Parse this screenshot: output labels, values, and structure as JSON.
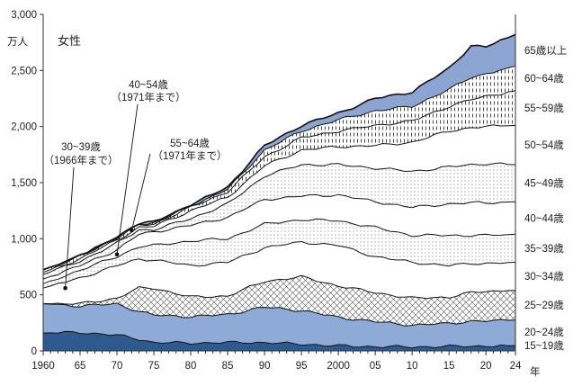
{
  "chart_data": {
    "type": "area",
    "title": "女性",
    "ylabel": "万人",
    "ylim": [
      0,
      3000
    ],
    "y_ticks": [
      "0",
      "500",
      "1,000",
      "1,500",
      "2,000",
      "2,500",
      "3,000"
    ],
    "y_tick_values": [
      0,
      500,
      1000,
      1500,
      2000,
      2500,
      3000
    ],
    "x_tick_labels": [
      "1960",
      "65",
      "70",
      "75",
      "80",
      "85",
      "90",
      "95",
      "2000",
      "05",
      "10",
      "15",
      "20",
      "24"
    ],
    "x_tick_values": [
      1960,
      1965,
      1970,
      1975,
      1980,
      1985,
      1990,
      1995,
      2000,
      2005,
      2010,
      2015,
      2020,
      2024
    ],
    "x_unit": "年",
    "x_anchor_years": [
      1960,
      1965,
      1970,
      1973,
      1975,
      1980,
      1985,
      1990,
      1995,
      2000,
      2005,
      2010,
      2015,
      2018,
      2020,
      2024
    ],
    "boundaries": [
      {
        "name": "15~19",
        "values": [
          160,
          165,
          140,
          105,
          75,
          70,
          75,
          75,
          60,
          45,
          38,
          35,
          40,
          42,
          44,
          47
        ]
      },
      {
        "name": "20~24",
        "values": [
          420,
          400,
          420,
          350,
          320,
          305,
          325,
          390,
          360,
          300,
          260,
          230,
          245,
          265,
          265,
          275
        ]
      },
      {
        "name": "25~29",
        "values": [
          420,
          420,
          470,
          560,
          560,
          480,
          490,
          620,
          660,
          580,
          520,
          470,
          480,
          520,
          530,
          540
        ]
      },
      {
        "name": "30~34",
        "values": [
          560,
          650,
          760,
          820,
          810,
          760,
          790,
          920,
          970,
          940,
          840,
          790,
          760,
          780,
          780,
          790
        ]
      },
      {
        "name": "35~39",
        "values": [
          600,
          720,
          840,
          930,
          940,
          980,
          1000,
          1130,
          1170,
          1160,
          1100,
          1030,
          1030,
          1030,
          1030,
          1040
        ]
      },
      {
        "name": "40~44",
        "values": [
          640,
          760,
          900,
          1040,
          1060,
          1120,
          1190,
          1350,
          1380,
          1390,
          1330,
          1280,
          1310,
          1320,
          1320,
          1330
        ]
      },
      {
        "name": "45~49",
        "values": [
          680,
          800,
          960,
          1080,
          1080,
          1180,
          1310,
          1560,
          1660,
          1660,
          1630,
          1600,
          1640,
          1660,
          1670,
          1660
        ]
      },
      {
        "name": "50~54",
        "values": [
          700,
          820,
          990,
          1100,
          1110,
          1250,
          1370,
          1650,
          1790,
          1820,
          1830,
          1860,
          1960,
          1990,
          2000,
          2010
        ]
      },
      {
        "name": "55~59",
        "values": [
          720,
          840,
          1010,
          1120,
          1130,
          1280,
          1420,
          1730,
          1900,
          1960,
          2010,
          2050,
          2180,
          2240,
          2270,
          2320
        ]
      },
      {
        "name": "60~64",
        "values": [
          720,
          840,
          1010,
          1125,
          1140,
          1290,
          1440,
          1790,
          1960,
          2060,
          2140,
          2180,
          2330,
          2440,
          2470,
          2540
        ]
      },
      {
        "name": "65以上",
        "values": [
          720,
          840,
          1010,
          1130,
          1150,
          1300,
          1460,
          1830,
          2010,
          2120,
          2250,
          2310,
          2520,
          2720,
          2710,
          2820
        ]
      }
    ],
    "series_labels": [
      "15~19歳",
      "20~24歳",
      "25~29歳",
      "30~34歳",
      "35~39歳",
      "40~44歳",
      "45~49歳",
      "50~54歳",
      "55~59歳",
      "60~64歳",
      "65歳以上"
    ],
    "series_styles": [
      "dark-blue",
      "mid-blue",
      "crosshatch",
      "white",
      "dots",
      "white",
      "dots",
      "white",
      "dashes",
      "dashes",
      "light-blue"
    ],
    "colors": {
      "dark_blue": "#2f5a8f",
      "mid_blue": "#8eaad6",
      "light_blue": "#8ba4d1",
      "line": "#111111"
    },
    "annotations": [
      {
        "label_line1": "30~39歳",
        "label_line2": "（1966年まで）",
        "point": [
          1963,
          560
        ]
      },
      {
        "label_line1": "40~54歳",
        "label_line2": "（1971年まで）",
        "point": [
          1970,
          860
        ]
      },
      {
        "label_line1": "55~64歳",
        "label_line2": "（1971年まで）",
        "point": [
          1972,
          1075
        ]
      }
    ]
  }
}
